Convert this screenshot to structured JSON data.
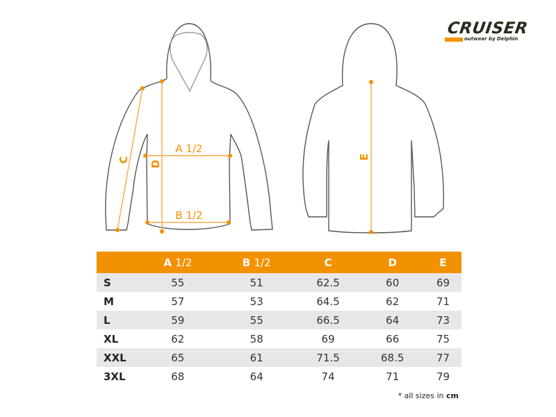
{
  "brand": {
    "name": "CRUISER",
    "tagline": "outwear by Delphin",
    "accent": "#f39200"
  },
  "diagram": {
    "labels": {
      "a": "A 1/2",
      "b": "B 1/2",
      "c": "C",
      "d": "D",
      "e": "E"
    }
  },
  "table": {
    "headers": [
      {
        "letter": "",
        "frac": ""
      },
      {
        "letter": "A",
        "frac": "1/2"
      },
      {
        "letter": "B",
        "frac": "1/2"
      },
      {
        "letter": "C",
        "frac": ""
      },
      {
        "letter": "D",
        "frac": ""
      },
      {
        "letter": "E",
        "frac": ""
      }
    ],
    "rows": [
      [
        "S",
        "55",
        "51",
        "62.5",
        "60",
        "69"
      ],
      [
        "M",
        "57",
        "53",
        "64.5",
        "62",
        "71"
      ],
      [
        "L",
        "59",
        "55",
        "66.5",
        "64",
        "73"
      ],
      [
        "XL",
        "62",
        "58",
        "69",
        "66",
        "75"
      ],
      [
        "XXL",
        "65",
        "61",
        "71.5",
        "68.5",
        "77"
      ],
      [
        "3XL",
        "68",
        "64",
        "74",
        "71",
        "79"
      ]
    ]
  },
  "note": {
    "prefix": "* all sizes in",
    "unit": "cm"
  }
}
